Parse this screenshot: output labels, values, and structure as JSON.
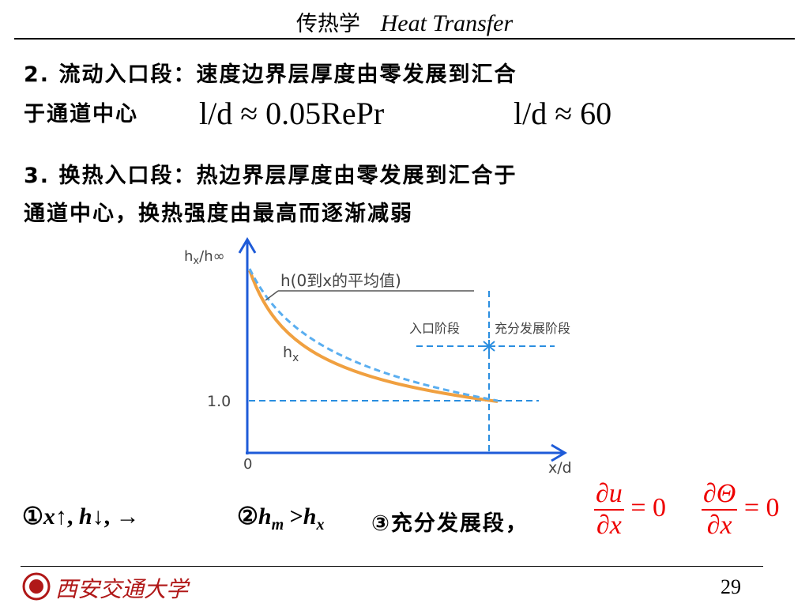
{
  "header": {
    "title_cn": "传热学",
    "title_en": "Heat Transfer"
  },
  "item2": {
    "lines": [
      "2. 流动入口段：速度边界层厚度由零发展到汇合",
      "于通道中心"
    ],
    "formula1": "l/d ≈ 0.05RePr",
    "formula2": "l/d ≈ 60"
  },
  "item3": {
    "lines": [
      "3. 换热入口段：热边界层厚度由零发展到汇合于",
      "通道中心，换热强度由最高而逐渐减弱"
    ]
  },
  "figure": {
    "y_axis": {
      "main": "h",
      "sub": "x",
      "rest": "/h∞"
    },
    "curve_avg": "h(0到x的平均值)",
    "curve_local": {
      "main": "h",
      "sub": "x"
    },
    "y_tick": "1.0",
    "origin": "0",
    "x_axis": "x/d",
    "entry": "入口阶段",
    "developed": "充分发展阶段"
  },
  "notes": {
    "note1": {
      "prefix": "①",
      "a": "x",
      "a_arrow": "↑",
      "sep": ",",
      "b": "h",
      "b_arrow": "↓",
      "sep2": ",",
      "c": "→"
    },
    "note2": {
      "prefix": "②",
      "a": "h",
      "a_sub": "m",
      "op": ">",
      "b": "h",
      "b_sub": "x"
    },
    "note3": "③充分发展段，",
    "eq1": {
      "num": "∂u",
      "den": "∂x",
      "rhs": "= 0"
    },
    "eq2": {
      "num": "∂Θ",
      "den": "∂x",
      "rhs": "= 0"
    }
  },
  "footer": {
    "university": "西安交通大学",
    "page": "29"
  }
}
